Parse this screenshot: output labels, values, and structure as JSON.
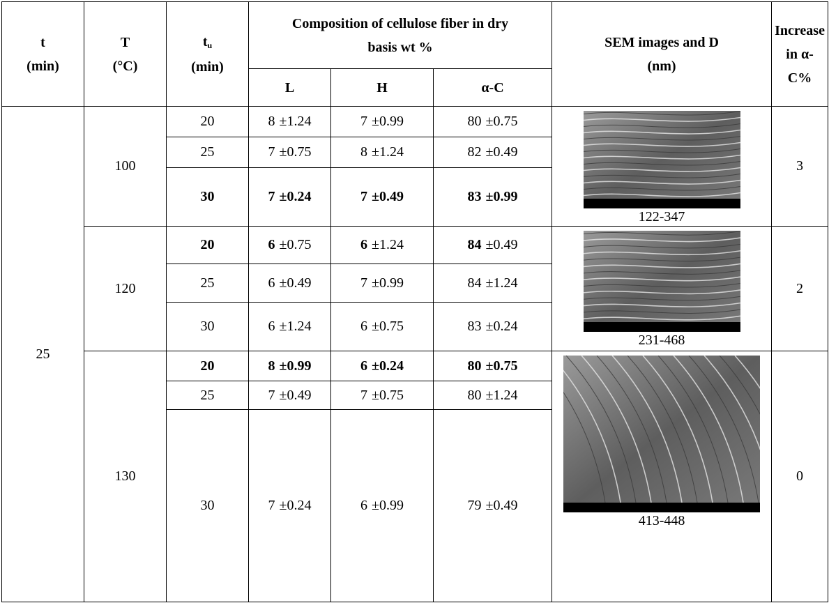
{
  "table": {
    "header": {
      "t": [
        "t",
        "(min)"
      ],
      "T": [
        "T",
        "(°C)"
      ],
      "tu": [
        "t",
        "u",
        "(min)"
      ],
      "composition": "Composition of cellulose fiber in dry basis wt %",
      "sem": "SEM images and D (nm)",
      "increase": "Increase in α-C%",
      "sub": [
        "L",
        "H",
        "α-C"
      ]
    },
    "t": "25",
    "groups": [
      {
        "T": "100",
        "D": "122-347",
        "increase": "3",
        "rows": [
          [
            "20",
            "8",
            "±1.24",
            "7",
            "±0.99",
            "80",
            "±0.75"
          ],
          [
            "25",
            "7",
            "±0.75",
            "8",
            "±1.24",
            "82",
            "±0.49"
          ],
          [
            "30",
            "7",
            "±0.24",
            "7",
            "±0.49",
            "83",
            "±0.99"
          ]
        ]
      },
      {
        "T": "120",
        "D": "231-468",
        "increase": "2",
        "rows": [
          [
            "20",
            "6",
            "±0.75",
            "6",
            "±1.24",
            "84",
            "±0.49"
          ],
          [
            "25",
            "6",
            "±0.49",
            "7",
            "±0.99",
            "84",
            "±1.24"
          ],
          [
            "30",
            "6",
            "±1.24",
            "6",
            "±0.75",
            "83",
            "±0.24"
          ]
        ]
      },
      {
        "T": "130",
        "D": "413-448",
        "increase": "0",
        "rows": [
          [
            "20",
            "8",
            "±0.99",
            "6",
            "±0.24",
            "80",
            "±0.75"
          ],
          [
            "25",
            "7",
            "±0.49",
            "7",
            "±0.75",
            "80",
            "±1.24"
          ],
          [
            "30",
            "7",
            "±0.24",
            "6",
            "±0.99",
            "79",
            "±0.49"
          ]
        ]
      }
    ]
  }
}
